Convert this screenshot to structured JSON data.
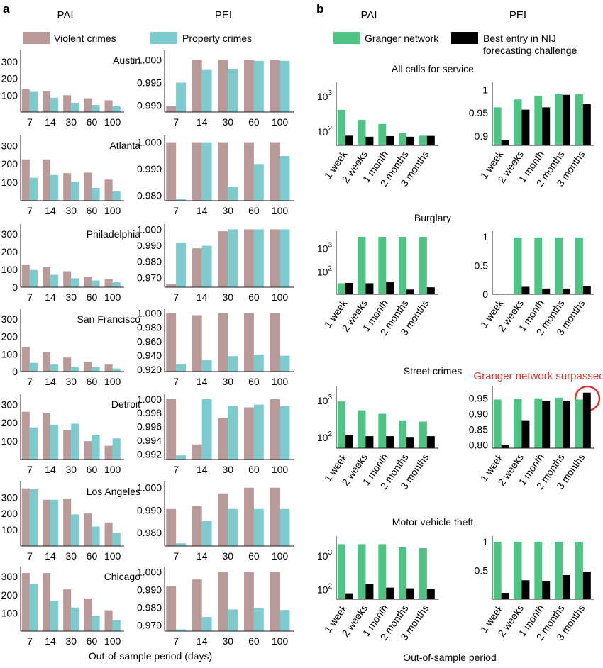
{
  "panels": {
    "a": {
      "letter": "a",
      "col_headers": [
        "PAI",
        "PEI"
      ],
      "legend": [
        {
          "label": "Violent crimes",
          "color": "#b99a98"
        },
        {
          "label": "Property crimes",
          "color": "#7ccbcf"
        }
      ],
      "xlabel": "Out-of-sample period (days)"
    },
    "b": {
      "letter": "b",
      "col_headers": [
        "PAI",
        "PEI"
      ],
      "legend": [
        {
          "label": "Granger network",
          "color": "#4cc483"
        },
        {
          "label": "Best entry in NIJ forecasting challenge",
          "color": "#000000"
        }
      ],
      "xlabel": "Out-of-sample period",
      "annotation": {
        "text": "Granger network surpassed",
        "color": "#e8302c"
      }
    }
  },
  "chart_data": [
    {
      "type": "bar",
      "panel": "a",
      "metric": "PAI",
      "categories": [
        "7",
        "14",
        "30",
        "60",
        "100"
      ],
      "cities": [
        {
          "title": "Austin",
          "yticks": [
            "300",
            "200",
            "100"
          ],
          "ylim": [
            0,
            350
          ],
          "series": [
            {
              "name": "Violent crimes",
              "values": [
                135,
                122,
                100,
                82,
                70
              ]
            },
            {
              "name": "Property crimes",
              "values": [
                120,
                85,
                55,
                42,
                35
              ]
            }
          ]
        },
        {
          "title": "Atlanta",
          "yticks": [
            "300",
            "200",
            "100"
          ],
          "ylim": [
            0,
            340
          ],
          "series": [
            {
              "name": "Violent crimes",
              "values": [
                225,
                225,
                150,
                153,
                115
              ]
            },
            {
              "name": "Property crimes",
              "values": [
                125,
                140,
                105,
                70,
                50
              ]
            }
          ]
        },
        {
          "title": "Philadelphia",
          "yticks": [
            "300",
            "200",
            "100",
            "0"
          ],
          "ylim": [
            0,
            340
          ],
          "series": [
            {
              "name": "Violent crimes",
              "values": [
                128,
                115,
                90,
                60,
                45
              ]
            },
            {
              "name": "Property crimes",
              "values": [
                97,
                70,
                50,
                38,
                28
              ]
            }
          ]
        },
        {
          "title": "San Francisco",
          "yticks": [
            "300",
            "200",
            "100",
            "0"
          ],
          "ylim": [
            0,
            340
          ],
          "series": [
            {
              "name": "Violent crimes",
              "values": [
                140,
                110,
                80,
                55,
                40
              ]
            },
            {
              "name": "Property crimes",
              "values": [
                50,
                40,
                28,
                25,
                18
              ]
            }
          ]
        },
        {
          "title": "Detroit",
          "yticks": [
            "300",
            "200",
            "100"
          ],
          "ylim": [
            0,
            340
          ],
          "series": [
            {
              "name": "Violent crimes",
              "values": [
                260,
                255,
                160,
                100,
                75
              ]
            },
            {
              "name": "Property crimes",
              "values": [
                175,
                190,
                195,
                135,
                115
              ]
            }
          ]
        },
        {
          "title": "Los Angeles",
          "yticks": [
            "300",
            "200",
            "100"
          ],
          "ylim": [
            0,
            380
          ],
          "series": [
            {
              "name": "Violent crimes",
              "values": [
                355,
                285,
                290,
                200,
                145
              ]
            },
            {
              "name": "Property crimes",
              "values": [
                350,
                285,
                195,
                120,
                80
              ]
            }
          ]
        },
        {
          "title": "Chicago",
          "yticks": [
            "300",
            "200",
            "100"
          ],
          "ylim": [
            0,
            340
          ],
          "series": [
            {
              "name": "Violent crimes",
              "values": [
                320,
                320,
                230,
                180,
                115
              ]
            },
            {
              "name": "Property crimes",
              "values": [
                260,
                165,
                130,
                85,
                60
              ]
            }
          ]
        }
      ]
    },
    {
      "type": "bar",
      "panel": "a",
      "metric": "PEI",
      "categories": [
        "7",
        "14",
        "30",
        "60",
        "100"
      ],
      "cities": [
        {
          "title": "Austin",
          "yticks": [
            "1.000",
            "0.995",
            "0.990"
          ],
          "ytick_values": [
            1.0,
            0.995,
            0.99
          ],
          "ylim": [
            0.9885,
            1.0015
          ],
          "series": [
            {
              "name": "Violent crimes",
              "values": [
                0.9898,
                1.0,
                1.0,
                1.0,
                1.0
              ]
            },
            {
              "name": "Property crimes",
              "values": [
                0.995,
                0.9978,
                0.9979,
                0.9998,
                0.9998
              ]
            }
          ]
        },
        {
          "title": "Atlanta",
          "yticks": [
            "1.000",
            "0.990",
            "0.980"
          ],
          "ytick_values": [
            1.0,
            0.99,
            0.98
          ],
          "ylim": [
            0.978,
            1.0015
          ],
          "series": [
            {
              "name": "Violent crimes",
              "values": [
                1.0,
                1.0,
                1.0,
                1.0,
                1.0
              ]
            },
            {
              "name": "Property crimes",
              "values": [
                0.9788,
                1.0,
                0.9832,
                0.9918,
                0.9948
              ]
            }
          ]
        },
        {
          "title": "Philadelphia",
          "yticks": [
            "1.000",
            "0.990",
            "0.980",
            "0.970"
          ],
          "ytick_values": [
            1.0,
            0.99,
            0.98,
            0.97
          ],
          "ylim": [
            0.964,
            1.0015
          ],
          "series": [
            {
              "name": "Violent crimes",
              "values": [
                0.966,
                0.9882,
                0.9988,
                1.0,
                1.0
              ]
            },
            {
              "name": "Property crimes",
              "values": [
                0.9918,
                0.9898,
                1.0,
                1.0,
                1.0
              ]
            }
          ]
        },
        {
          "title": "San Francisco",
          "yticks": [
            "1.000",
            "0.980",
            "0.960",
            "0.940",
            "0.920"
          ],
          "ytick_values": [
            1.0,
            0.98,
            0.96,
            0.94,
            0.92
          ],
          "ylim": [
            0.917,
            1.0015
          ],
          "series": [
            {
              "name": "Violent crimes",
              "values": [
                1.0,
                0.997,
                1.0,
                1.0,
                1.0
              ]
            },
            {
              "name": "Property crimes",
              "values": [
                0.9275,
                0.9335,
                0.939,
                0.9412,
                0.9395
              ]
            }
          ]
        },
        {
          "title": "Detroit",
          "yticks": [
            "1.000",
            "0.998",
            "0.996",
            "0.994",
            "0.992"
          ],
          "ytick_values": [
            1.0,
            0.998,
            0.996,
            0.994,
            0.992
          ],
          "ylim": [
            0.9912,
            1.0003
          ],
          "series": [
            {
              "name": "Violent crimes",
              "values": [
                1.0,
                0.9934,
                0.9973,
                0.9988,
                1.0
              ]
            },
            {
              "name": "Property crimes",
              "values": [
                0.9918,
                1.0,
                0.999,
                0.9992,
                0.999
              ]
            }
          ]
        },
        {
          "title": "Los Angeles",
          "yticks": [
            "1.000",
            "0.990",
            "0.980"
          ],
          "ytick_values": [
            1.0,
            0.99,
            0.98
          ],
          "ylim": [
            0.974,
            1.0015
          ],
          "series": [
            {
              "name": "Violent crimes",
              "values": [
                0.9905,
                0.9918,
                0.9975,
                1.0,
                1.0
              ]
            },
            {
              "name": "Property crimes",
              "values": [
                0.9752,
                0.9852,
                0.9905,
                0.9905,
                0.9905
              ]
            }
          ]
        },
        {
          "title": "Chicago",
          "yticks": [
            "1.000",
            "0.990",
            "0.980",
            "0.970"
          ],
          "ytick_values": [
            1.0,
            0.99,
            0.98,
            0.97
          ],
          "ylim": [
            0.9665,
            1.0015
          ],
          "series": [
            {
              "name": "Violent crimes",
              "values": [
                0.992,
                0.9958,
                1.0,
                1.0,
                1.0
              ]
            },
            {
              "name": "Property crimes",
              "values": [
                0.9675,
                0.9745,
                0.9788,
                0.9795,
                0.9785
              ]
            }
          ]
        }
      ]
    },
    {
      "type": "bar",
      "panel": "b",
      "metric": "PAI",
      "yscale": "log",
      "categories": [
        "1 week",
        "2 weeks",
        "1 month",
        "2 months",
        "3 months"
      ],
      "crimes": [
        {
          "title": "All calls for service",
          "ylim": [
            40,
            2000
          ],
          "series": [
            {
              "name": "Granger network",
              "values": [
                400,
                210,
                160,
                90,
                75
              ]
            },
            {
              "name": "Best entry in NIJ forecasting challenge",
              "values": [
                75,
                70,
                73,
                70,
                74
              ]
            }
          ]
        },
        {
          "title": "Burglary",
          "ylim": [
            10,
            4000
          ],
          "series": [
            {
              "name": "Granger network",
              "values": [
                30,
                3000,
                3000,
                3000,
                3000
              ]
            },
            {
              "name": "Best entry in NIJ forecasting challenge",
              "values": [
                31,
                30,
                33,
                16,
                20
              ]
            }
          ]
        },
        {
          "title": "Street crimes",
          "ylim": [
            50,
            2000
          ],
          "series": [
            {
              "name": "Granger network",
              "values": [
                900,
                520,
                420,
                280,
                260
              ]
            },
            {
              "name": "Best entry in NIJ forecasting challenge",
              "values": [
                110,
                105,
                105,
                100,
                105
              ]
            }
          ]
        },
        {
          "title": "Motor vehicle theft",
          "ylim": [
            50,
            3000
          ],
          "series": [
            {
              "name": "Granger network",
              "values": [
                2100,
                2100,
                2100,
                1700,
                1600
              ]
            },
            {
              "name": "Best entry in NIJ forecasting challenge",
              "values": [
                75,
                140,
                110,
                105,
                100
              ]
            }
          ]
        }
      ]
    },
    {
      "type": "bar",
      "panel": "b",
      "metric": "PEI",
      "categories": [
        "1 week",
        "2 weeks",
        "1 month",
        "2 months",
        "3 months"
      ],
      "crimes": [
        {
          "title": "All calls for service",
          "yticks": [
            "1",
            "0.95",
            "0.9"
          ],
          "ytick_values": [
            1,
            0.95,
            0.9
          ],
          "ylim": [
            0.88,
            1.01
          ],
          "series": [
            {
              "name": "Granger network",
              "values": [
                0.962,
                0.979,
                0.987,
                0.991,
                0.99
              ]
            },
            {
              "name": "Best entry in NIJ forecasting challenge",
              "values": [
                0.891,
                0.957,
                0.962,
                0.989,
                0.969
              ]
            }
          ]
        },
        {
          "title": "Burglary",
          "yticks": [
            "1",
            "0.5",
            "0"
          ],
          "ytick_values": [
            1,
            0.5,
            0
          ],
          "ylim": [
            0,
            1.05
          ],
          "series": [
            {
              "name": "Granger network",
              "values": [
                0.01,
                0.99,
                0.99,
                0.99,
                0.99
              ]
            },
            {
              "name": "Best entry in NIJ forecasting challenge",
              "values": [
                0.01,
                0.13,
                0.1,
                0.1,
                0.14
              ]
            }
          ]
        },
        {
          "title": "Street crimes",
          "yticks": [
            "0.95",
            "0.90",
            "0.85",
            "0.80"
          ],
          "ytick_values": [
            0.95,
            0.9,
            0.85,
            0.8
          ],
          "ylim": [
            0.79,
            0.98
          ],
          "series": [
            {
              "name": "Granger network",
              "values": [
                0.945,
                0.947,
                0.949,
                0.951,
                0.945
              ]
            },
            {
              "name": "Best entry in NIJ forecasting challenge",
              "values": [
                0.801,
                0.879,
                0.941,
                0.941,
                0.967
              ]
            }
          ]
        },
        {
          "title": "Motor vehicle theft",
          "yticks": [
            "1",
            "0.5"
          ],
          "ytick_values": [
            1,
            0.5
          ],
          "ylim": [
            0,
            1.05
          ],
          "series": [
            {
              "name": "Granger network",
              "values": [
                1.0,
                1.0,
                1.0,
                1.0,
                1.0
              ]
            },
            {
              "name": "Best entry in NIJ forecasting challenge",
              "values": [
                0.11,
                0.33,
                0.31,
                0.42,
                0.48
              ]
            }
          ]
        }
      ]
    }
  ]
}
